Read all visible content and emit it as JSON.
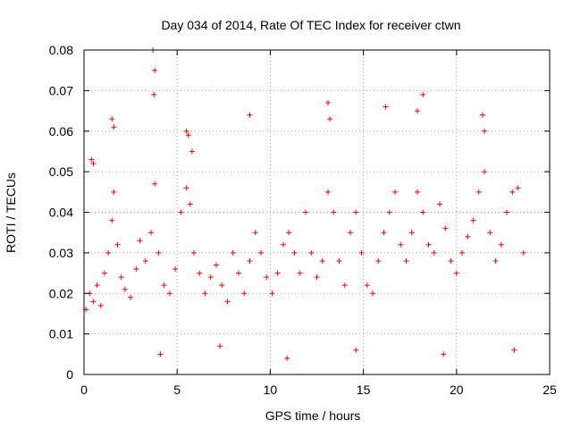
{
  "chart_data": {
    "type": "scatter",
    "title": "Day 034 of 2014, Rate Of TEC Index for receiver ctwn",
    "xlabel": "GPS time / hours",
    "ylabel": "ROTI / TECUs",
    "xlim": [
      0,
      25
    ],
    "ylim": [
      0,
      0.08
    ],
    "xticks": [
      "0",
      "5",
      "10",
      "15",
      "20",
      "25"
    ],
    "yticks": [
      "0",
      "0.01",
      "0.02",
      "0.03",
      "0.04",
      "0.05",
      "0.06",
      "0.07",
      "0.08"
    ],
    "grid": true,
    "marker": "+",
    "color": "#ff0000",
    "series": [
      {
        "x": [
          0.1,
          0.3,
          0.5,
          0.7,
          0.9,
          1.1,
          1.3,
          1.5,
          1.6,
          1.8,
          2.0,
          2.2,
          2.5,
          2.8,
          3.0,
          3.3,
          3.6,
          3.8,
          4.0,
          4.3,
          4.6,
          4.9,
          5.2,
          5.5,
          5.7,
          5.9,
          6.2,
          6.5,
          6.8,
          7.1,
          7.4,
          7.7,
          8.0,
          8.3,
          8.6,
          8.9,
          9.2,
          9.5,
          9.8,
          10.1,
          10.4,
          10.7,
          11.0,
          11.3,
          11.6,
          11.9,
          12.2,
          12.5,
          12.8,
          13.1,
          13.4,
          13.7,
          14.0,
          14.3,
          14.6,
          14.9,
          15.2,
          15.5,
          15.8,
          16.1,
          16.4,
          16.7,
          17.0,
          17.3,
          17.6,
          17.9,
          18.2,
          18.5,
          18.8,
          19.1,
          19.4,
          19.7,
          20.0,
          20.3,
          20.6,
          20.9,
          21.2,
          21.5,
          21.8,
          22.1,
          22.4,
          22.7,
          23.0,
          23.3,
          23.6,
          1.5,
          1.6,
          3.7,
          3.8,
          3.75,
          5.5,
          5.6,
          5.8,
          8.9,
          13.1,
          13.2,
          16.2,
          17.9,
          18.2,
          21.4,
          21.5,
          0.4,
          0.5,
          4.1,
          7.3,
          10.9,
          14.6,
          19.3,
          23.1
        ],
        "y": [
          0.016,
          0.02,
          0.018,
          0.022,
          0.017,
          0.025,
          0.03,
          0.038,
          0.045,
          0.032,
          0.024,
          0.021,
          0.019,
          0.026,
          0.033,
          0.028,
          0.035,
          0.047,
          0.03,
          0.022,
          0.02,
          0.026,
          0.04,
          0.046,
          0.042,
          0.03,
          0.025,
          0.02,
          0.024,
          0.027,
          0.022,
          0.018,
          0.03,
          0.025,
          0.02,
          0.028,
          0.035,
          0.03,
          0.024,
          0.02,
          0.025,
          0.032,
          0.035,
          0.03,
          0.025,
          0.04,
          0.03,
          0.024,
          0.028,
          0.045,
          0.04,
          0.028,
          0.022,
          0.035,
          0.04,
          0.03,
          0.022,
          0.02,
          0.028,
          0.035,
          0.04,
          0.045,
          0.032,
          0.028,
          0.035,
          0.045,
          0.04,
          0.032,
          0.03,
          0.042,
          0.036,
          0.028,
          0.025,
          0.03,
          0.034,
          0.038,
          0.045,
          0.05,
          0.035,
          0.028,
          0.032,
          0.04,
          0.045,
          0.046,
          0.03,
          0.063,
          0.061,
          0.08,
          0.075,
          0.069,
          0.06,
          0.059,
          0.055,
          0.064,
          0.067,
          0.063,
          0.066,
          0.065,
          0.069,
          0.064,
          0.06,
          0.053,
          0.052,
          0.005,
          0.007,
          0.004,
          0.006,
          0.005,
          0.006
        ]
      }
    ]
  }
}
